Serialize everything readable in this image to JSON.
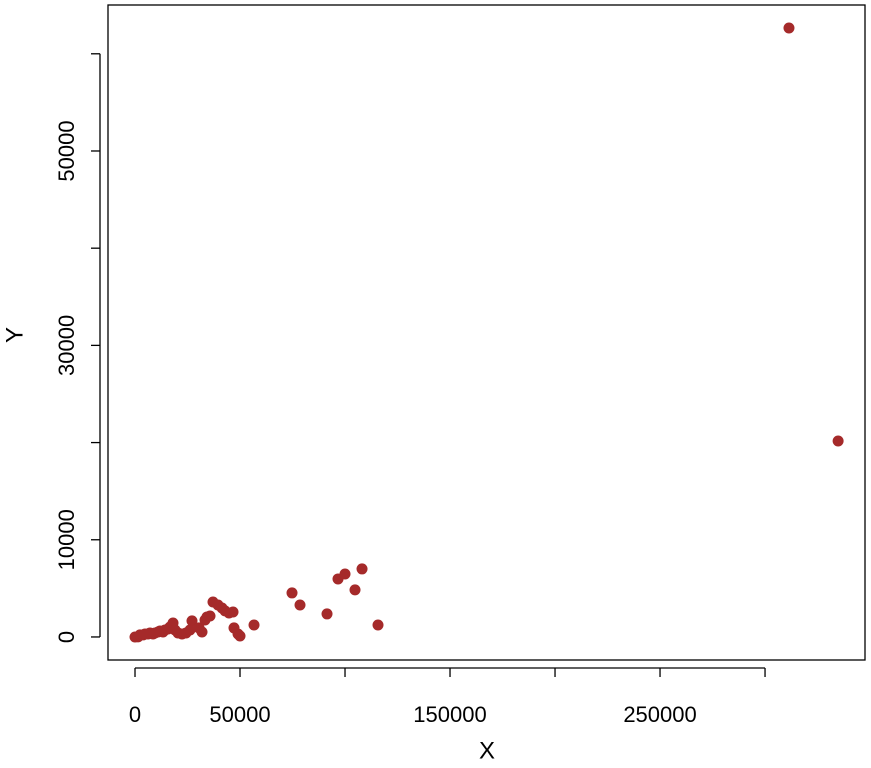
{
  "chart_data": {
    "type": "scatter",
    "x_label": "X",
    "y_label": "Y",
    "color": "#a52a2a",
    "xlim": [
      -12860,
      347600
    ],
    "ylim": [
      -2370,
      65020
    ],
    "xticks": [
      0,
      50000,
      {
        "value": 100000,
        "label": null
      },
      150000,
      {
        "value": 200000,
        "label": null
      },
      250000,
      {
        "value": 300000,
        "label": null
      }
    ],
    "yticks": [
      0,
      10000,
      {
        "value": 20000,
        "label": null
      },
      30000,
      {
        "value": 40000,
        "label": null
      },
      50000,
      {
        "value": 60000,
        "label": null
      }
    ],
    "x": [
      0,
      1430,
      2380,
      3810,
      4760,
      6190,
      7140,
      8570,
      9520,
      10950,
      11900,
      13330,
      14290,
      15710,
      16670,
      18100,
      19050,
      20480,
      22380,
      24290,
      26190,
      27140,
      30480,
      31900,
      33330,
      34290,
      35710,
      37140,
      39520,
      41430,
      42860,
      44760,
      46670,
      47140,
      49050,
      50000,
      56670,
      74760,
      78570,
      91430,
      96670,
      100000,
      104760,
      108100,
      115710,
      311400,
      334800
    ],
    "y": [
      0,
      10,
      210,
      210,
      310,
      310,
      410,
      310,
      410,
      510,
      620,
      510,
      720,
      820,
      1030,
      1440,
      720,
      410,
      310,
      410,
      720,
      1650,
      930,
      510,
      1750,
      2060,
      2160,
      3600,
      3290,
      2980,
      2680,
      2470,
      2570,
      930,
      310,
      100,
      1230,
      4530,
      3290,
      2370,
      5970,
      6480,
      4840,
      7000,
      1230,
      62650,
      20160
    ]
  }
}
